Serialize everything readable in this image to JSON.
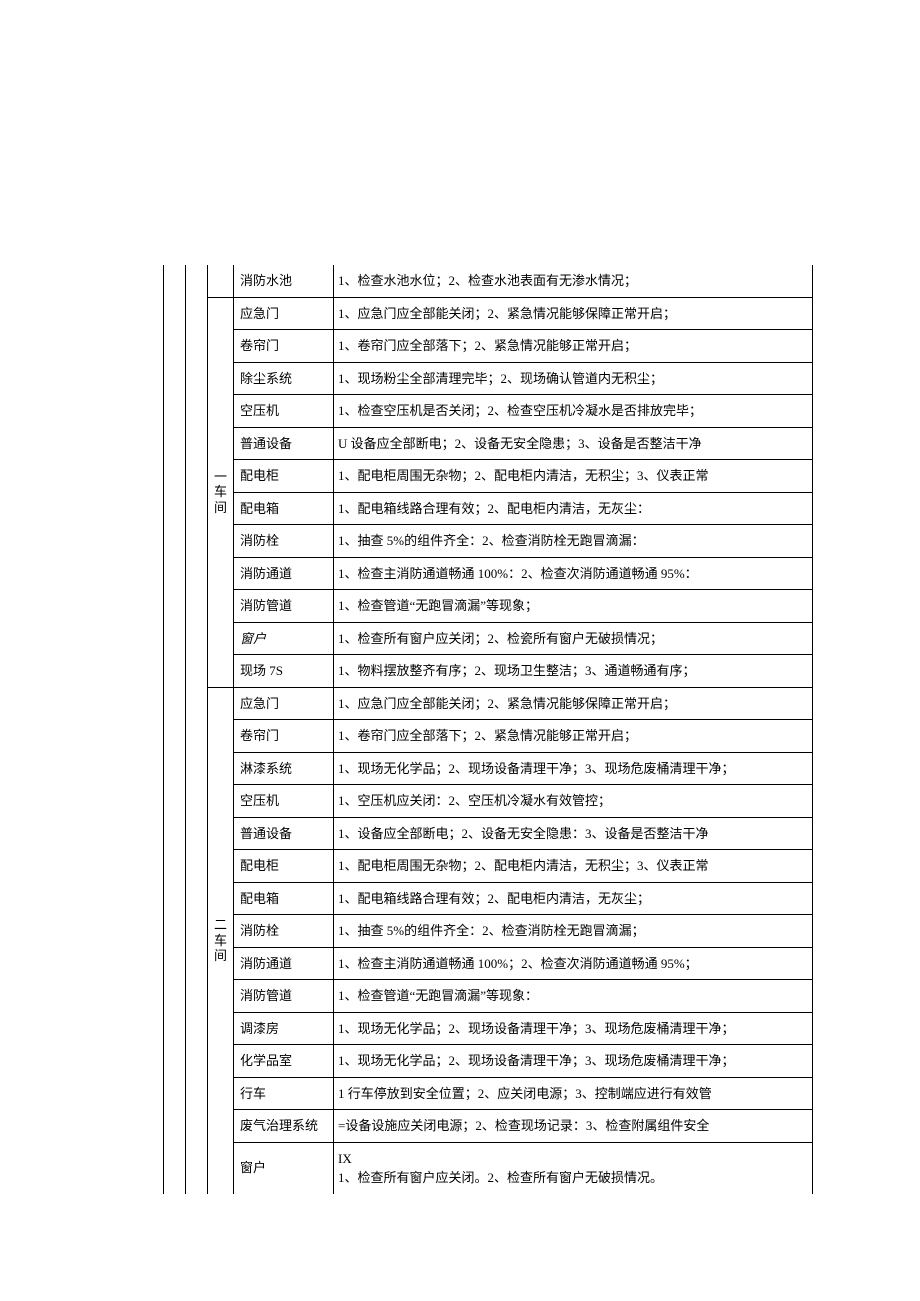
{
  "columns": {
    "item_width": 100,
    "section_width": 26
  },
  "sections": [
    {
      "label": "",
      "topOpen": true,
      "rows": [
        {
          "item": "消防水池",
          "desc": "1、检查水池水位；2、检查水池表面有无渗水情况；"
        }
      ]
    },
    {
      "label": "一车间",
      "vertical": true,
      "rows": [
        {
          "item": "应急门",
          "desc": "1、应急门应全部能关闭；2、紧急情况能够保障正常开启；"
        },
        {
          "item": "卷帘门",
          "desc": "1、卷帘门应全部落下；2、紧急情况能够正常开启；"
        },
        {
          "item": "除尘系统",
          "desc": "1、现场粉尘全部清理完毕；2、现场确认管道内无积尘；"
        },
        {
          "item": "空压机",
          "desc": "1、检查空压机是否关闭；2、检查空压机冷凝水是否排放完毕；"
        },
        {
          "item": "普通设备",
          "desc": "U 设备应全部断电；2、设备无安全隐患；3、设备是否整洁干净"
        },
        {
          "item": "配电柜",
          "desc": "1、配电柜周围无杂物；2、配电柜内清洁，无积尘；3、仪表正常"
        },
        {
          "item": "配电箱",
          "desc": "1、配电箱线路合理有效；2、配电柜内清洁，无灰尘："
        },
        {
          "item": "消防栓",
          "desc": "1、抽查 5%的组件齐全：2、检查消防栓无跑冒滴漏："
        },
        {
          "item": "消防通道",
          "desc": "1、检查主消防通道畅通 100%：2、检查次消防通道畅通 95%："
        },
        {
          "item": "消防管道",
          "desc": "1、检查管道“无跑冒滴漏”等现象；"
        },
        {
          "item": "窗户",
          "italic": true,
          "desc": "1、检查所有窗户应关闭；2、检瓷所有窗户无破损情况；"
        },
        {
          "item": "现场 7S",
          "desc": "1、物料摆放整齐有序；2、现场卫生整洁；3、通道畅通有序；"
        }
      ]
    },
    {
      "label": "二车间",
      "vertical": true,
      "bottomOpen": true,
      "rows": [
        {
          "item": "应急门",
          "desc": "1、应急门应全部能关闭；2、紧急情况能够保障正常开启；"
        },
        {
          "item": "卷帘门",
          "desc": "1、卷帘门应全部落下；2、紧急情况能够正常开启；"
        },
        {
          "item": "淋漆系统",
          "desc": "1、现场无化学品；2、现场设备清理干净；3、现场危废桶清理干净；"
        },
        {
          "item": "空压机",
          "desc": "1、空压机应关闭：2、空压机冷凝水有效管控；"
        },
        {
          "item": "普通设备",
          "desc": "1、设备应全部断电；2、设备无安全隐患：3、设备是否整洁干净"
        },
        {
          "item": "配电柜",
          "desc": "1、配电柜周围无杂物；2、配电柜内清洁，无积尘；3、仪表正常"
        },
        {
          "item": "配电箱",
          "desc": "1、配电箱线路合理有效；2、配电柜内清洁，无灰尘；"
        },
        {
          "item": "消防栓",
          "desc": "1、抽查 5%的组件齐全：2、检查消防栓无跑冒滴漏；"
        },
        {
          "item": "消防通道",
          "desc": "1、检查主消防通道畅通 100%；2、检查次消防通道畅通 95%；"
        },
        {
          "item": "消防管道",
          "desc": "1、检查管道“无跑冒滴漏”等现象："
        },
        {
          "item": "调漆房",
          "desc": "1、现场无化学品；2、现场设备清理干净；3、现场危废桶清理干净；"
        },
        {
          "item": "化学品室",
          "desc": "1、现场无化学品；2、现场设备清理干净；3、现场危废桶清理干净；"
        },
        {
          "item": "行车",
          "desc": "1 行车停放到安全位置；2、应关闭电源；3、控制端应进行有效管"
        },
        {
          "item": "废气治理系统",
          "desc": "=设备设施应关闭电源；2、检查现场记录：3、检查附属组件安全"
        },
        {
          "item": "窗户",
          "desc": "IX\n1、检查所有窗户应关闭。2、检查所有窗户无破损情况。",
          "cut": true
        }
      ]
    }
  ]
}
